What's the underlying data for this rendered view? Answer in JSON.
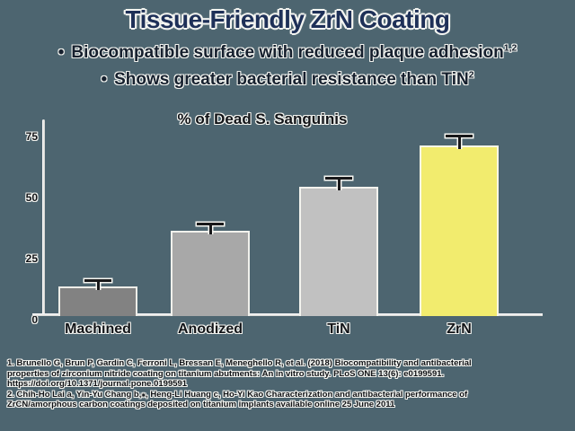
{
  "slide": {
    "title": "Tissue-Friendly ZrN Coating",
    "bullet_char": "•",
    "bullets": [
      {
        "text": "Biocompatible surface with reduced plaque adhesion",
        "sup": "1,2"
      },
      {
        "text": "Shows greater bacterial resistance than TiN",
        "sup": "2"
      }
    ],
    "footnote_lines": [
      "1. Brunello G, Brun P, Gardin C, Ferroni L, Bressan E, Meneghello R, et al. (2018) Biocompatibility and antibacterial",
      "properties of zirconium nitride coating on titanium abutments: An in vitro study. PLoS ONE 13(6): e0199591.",
      "https://doi.org/10.1371/journal.pone.0199591",
      "2. Chih-Ho Lai a, Yin-Yu Chang b,⁎, Heng-Li Huang c, Ho-Yi Kao Characterization and antibacterial performance of",
      "ZrCN/amorphous carbon coatings deposited on titanium implants available online 25 June 2011"
    ]
  },
  "chart_data": {
    "type": "bar",
    "title": "% of Dead S. Sanguinis",
    "categories": [
      "Machined",
      "Anodized",
      "TiN",
      "ZrN"
    ],
    "values": [
      12,
      35,
      53,
      70
    ],
    "error_bars": [
      2,
      2,
      3,
      3
    ],
    "bar_colors": [
      "#828282",
      "#a8a8a8",
      "#c1c1c1",
      "#f2ec6e"
    ],
    "yticks": [
      0,
      25,
      50,
      75
    ],
    "ylim": [
      0,
      80
    ],
    "xlabel": "",
    "ylabel": "",
    "grid": false,
    "legend": "none"
  },
  "colors": {
    "background": "#4d6570",
    "title_text": "#1e3058",
    "body_text": "#16202e",
    "chart_text": "#121418",
    "axis_line": "#e8e8e4",
    "text_halo": "#f2f3ef",
    "zrn_highlight": "#f2ec6e"
  }
}
